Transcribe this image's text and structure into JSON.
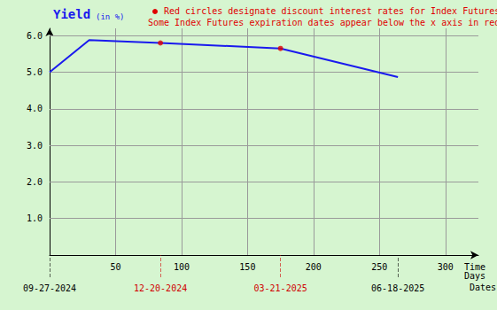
{
  "chart_data": {
    "type": "line",
    "title": "Yield",
    "subtitle": "(in %)",
    "annotations": [
      "Red circles designate discount interest rates for Index Futures.",
      "Some Index Futures expiration dates appear below the x axis in red."
    ],
    "xlabel": "Time\nDays",
    "date_axis_label": "Dates",
    "x": [
      0,
      30,
      84,
      175,
      264
    ],
    "series": [
      {
        "color": "#1a1aee",
        "line_style": "solid",
        "marker": "none",
        "values": [
          5.0,
          5.88,
          5.8,
          5.65,
          4.87
        ]
      },
      {
        "type": "scatter",
        "color": "#e00000",
        "marker": "circle",
        "values": [
          null,
          null,
          5.8,
          5.65,
          null
        ]
      }
    ],
    "dates": [
      {
        "value": 0,
        "label": "09-27-2024",
        "color": "#000000"
      },
      {
        "value": 84,
        "label": "12-20-2024",
        "color": "#d00000"
      },
      {
        "value": 175,
        "label": "03-21-2025",
        "color": "#d00000"
      },
      {
        "value": 264,
        "label": "06-18-2025",
        "color": "#000000"
      }
    ],
    "xlim": [
      0,
      325
    ],
    "xticks": [
      50,
      100,
      150,
      200,
      250,
      300
    ],
    "ylim": [
      0,
      6.2
    ],
    "yticks": [
      {
        "value": 1,
        "label": "1.0"
      },
      {
        "value": 2,
        "label": "2.0"
      },
      {
        "value": 3,
        "label": "3.0"
      },
      {
        "value": 4,
        "label": "4.0"
      },
      {
        "value": 5,
        "label": "5.0"
      },
      {
        "value": 6,
        "label": "6.0"
      }
    ],
    "grid": true
  }
}
